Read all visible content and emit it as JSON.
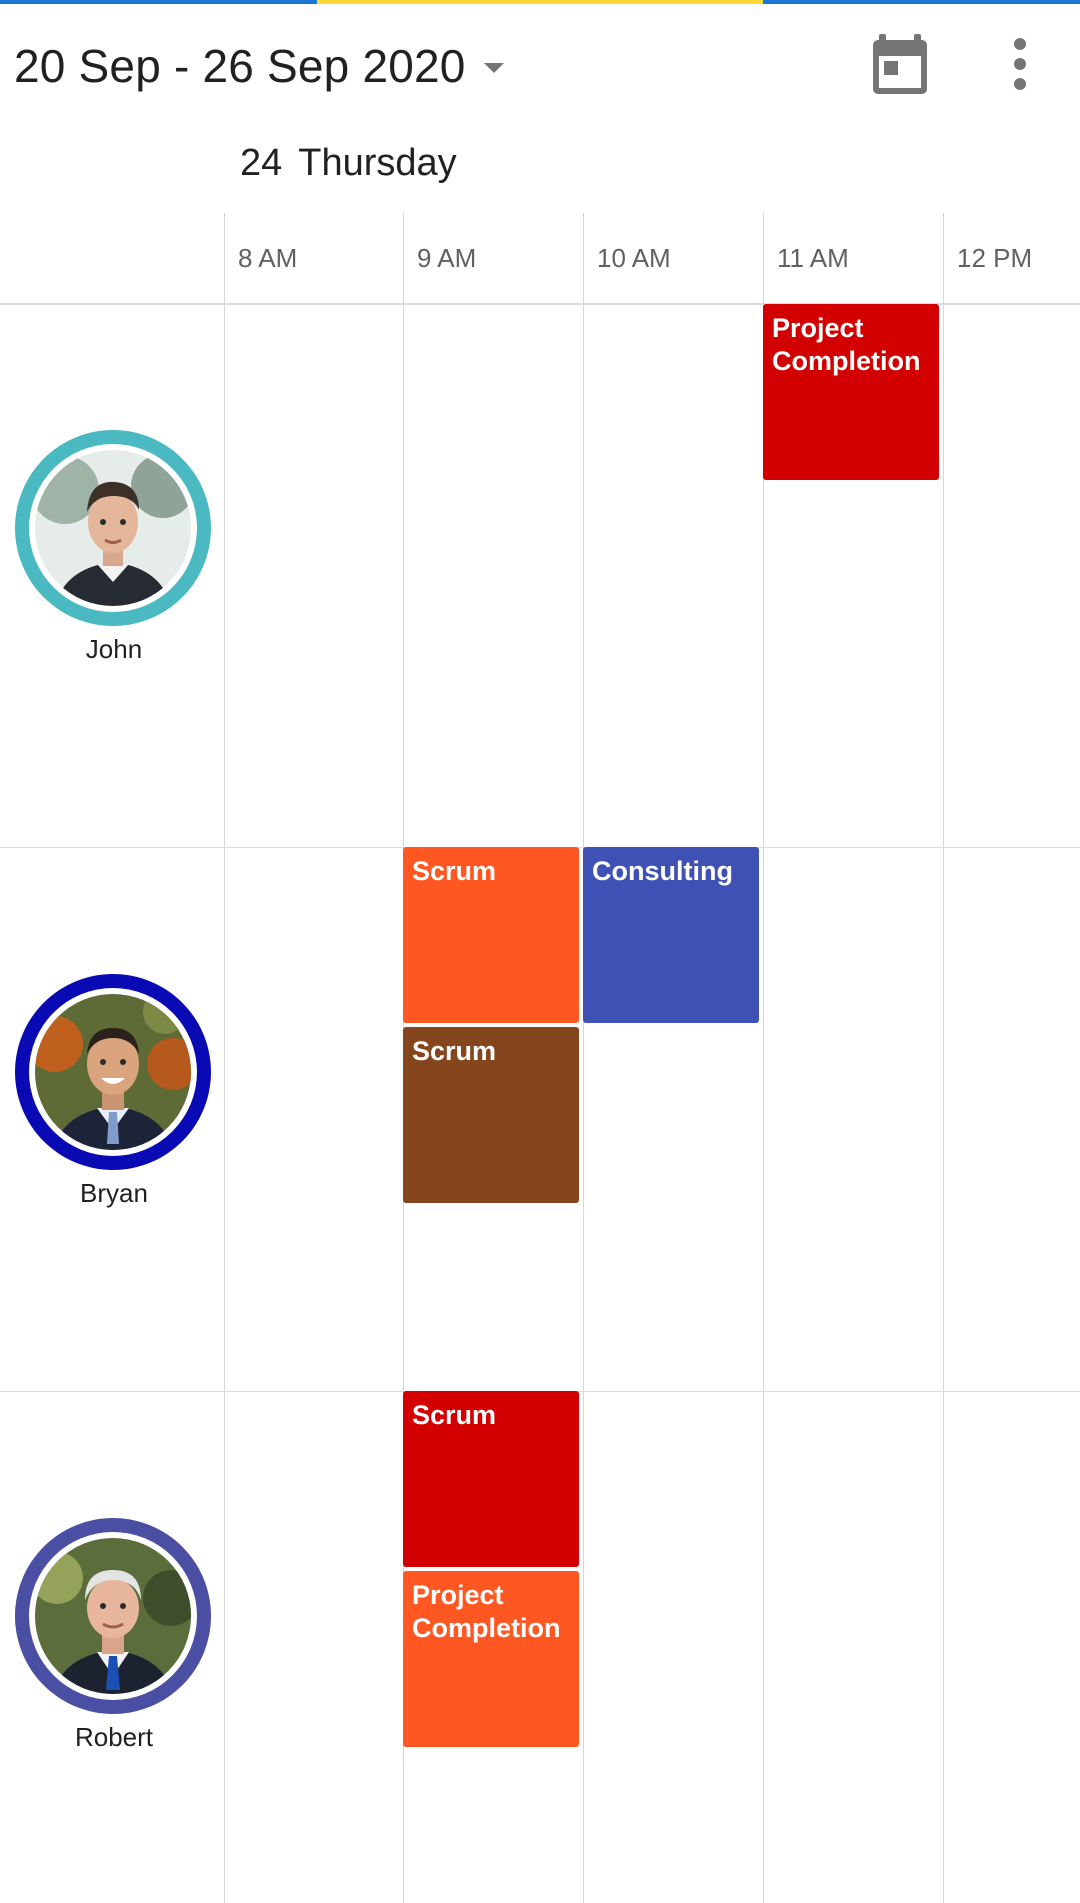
{
  "header": {
    "date_range": "20 Sep - 26 Sep 2020",
    "icons": {
      "dropdown": "chevron-down-icon",
      "today": "calendar-today-icon",
      "more": "more-vert-icon"
    }
  },
  "top_strip_colors": [
    "#1976d2",
    "#fdd835",
    "#1976d2"
  ],
  "day": {
    "number": "24",
    "name": "Thursday"
  },
  "time_slots": [
    "8 AM",
    "9 AM",
    "10 AM",
    "11 AM",
    "12 PM"
  ],
  "resources": [
    {
      "name": "John",
      "ring_color": "#4bb9c1"
    },
    {
      "name": "Bryan",
      "ring_color": "#0a0ab4"
    },
    {
      "name": "Robert",
      "ring_color": "#4a4fa3"
    }
  ],
  "appointments": [
    {
      "subject": "Project Completion",
      "color": "#d20000"
    },
    {
      "subject": "Scrum",
      "color": "#ff5722"
    },
    {
      "subject": "Consulting",
      "color": "#3f51b5"
    },
    {
      "subject": "Scrum",
      "color": "#85461e"
    },
    {
      "subject": "Scrum",
      "color": "#d20000"
    },
    {
      "subject": "Project Completion",
      "color": "#ff5722"
    }
  ]
}
